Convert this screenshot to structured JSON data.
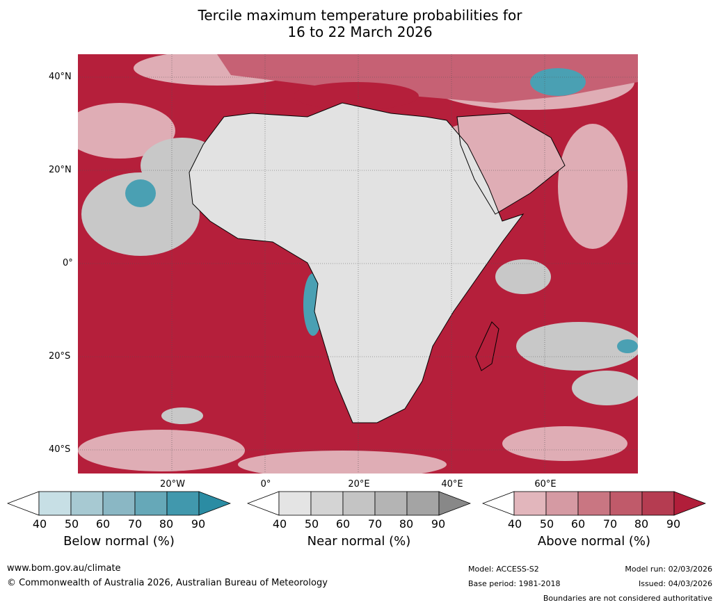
{
  "title": {
    "line1": "Tercile maximum temperature probabilities for",
    "line2": "16 to 22 March 2026"
  },
  "axes": {
    "lat_labels": [
      "40°N",
      "20°N",
      "0°",
      "20°S",
      "40°S"
    ],
    "lon_labels": [
      "20°W",
      "0°",
      "20°E",
      "40°E",
      "60°E"
    ]
  },
  "colorbars": [
    {
      "title": "Below normal (%)",
      "ticks": [
        "40",
        "50",
        "60",
        "70",
        "80",
        "90"
      ],
      "colors": [
        "#ffffff",
        "#c7dfe5",
        "#a7c9d2",
        "#8ab7c4",
        "#66a8b8",
        "#4198ad",
        "#2b8ca3"
      ]
    },
    {
      "title": "Near normal (%)",
      "ticks": [
        "40",
        "50",
        "60",
        "70",
        "80",
        "90"
      ],
      "colors": [
        "#ffffff",
        "#e4e4e4",
        "#d4d4d4",
        "#c4c4c4",
        "#b4b4b4",
        "#a4a4a4",
        "#888888"
      ]
    },
    {
      "title": "Above normal (%)",
      "ticks": [
        "40",
        "50",
        "60",
        "70",
        "80",
        "90"
      ],
      "colors": [
        "#ffffff",
        "#e2b6bc",
        "#d59aa3",
        "#c97682",
        "#c05a6a",
        "#b53c51",
        "#b11e3a"
      ]
    }
  ],
  "footer": {
    "website": "www.bom.gov.au/climate",
    "copyright": "© Commonwealth of Australia 2026, Australian Bureau of Meteorology",
    "model": "Model: ACCESS-S2",
    "base_period": "Base period: 1981-2018",
    "model_run": "Model run: 02/03/2026",
    "issued": "Issued: 04/03/2026",
    "disclaimer": "Boundaries are not considered authoritative"
  },
  "map_colors": {
    "above_strong": "#b51f3b",
    "above_mid": "#c66174",
    "above_light": "#dfadb5",
    "near": "#c8c8c8",
    "near_light": "#e2e2e2",
    "below": "#4aa0b3",
    "below_light": "#bcd9e0",
    "land_white": "#ffffff"
  }
}
